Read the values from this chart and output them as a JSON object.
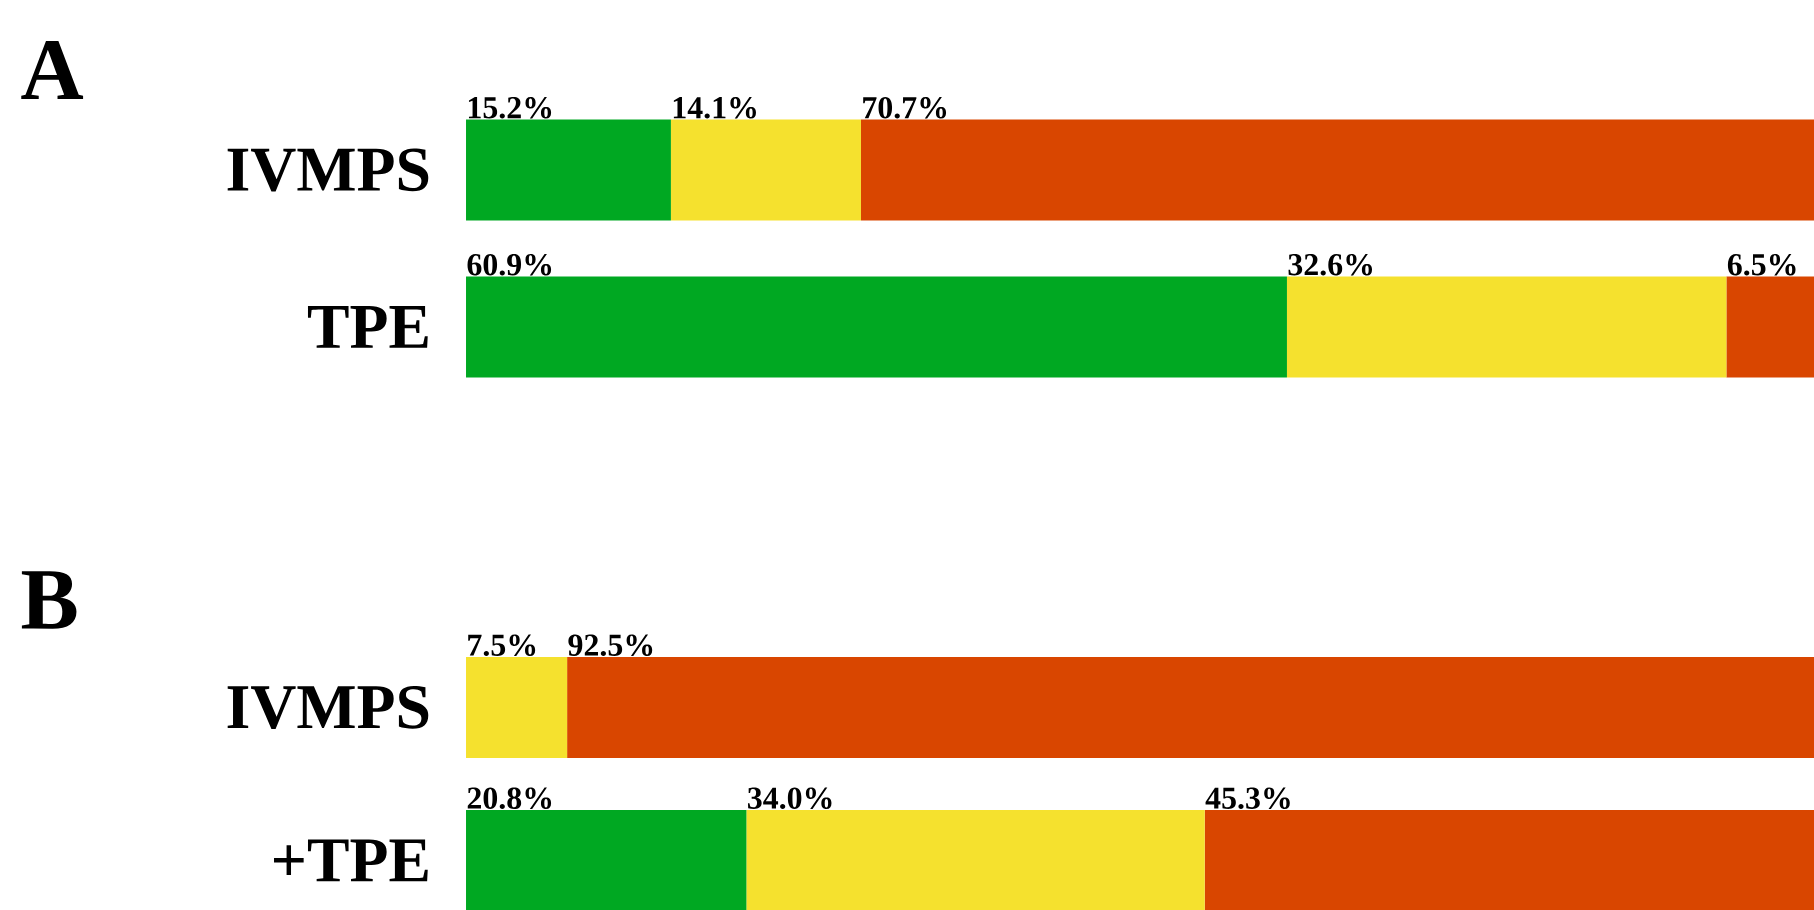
{
  "chart_data": [
    {
      "type": "bar",
      "orientation": "horizontal",
      "stacked": true,
      "title": "A",
      "categories": [
        "IVMPS",
        "TPE"
      ],
      "xlim": [
        0,
        100
      ],
      "tick_labels": "y",
      "series": [
        {
          "color": "#00a822",
          "values": [
            15.2,
            60.9
          ],
          "value_labels": [
            "15.2%",
            "60.9%"
          ]
        },
        {
          "color": "#f5e12e",
          "values": [
            14.1,
            32.6
          ],
          "value_labels": [
            "14.1%",
            "32.6%"
          ]
        },
        {
          "color": "#d94600",
          "values": [
            70.7,
            6.5
          ],
          "value_labels": [
            "70.7%",
            "6.5%"
          ]
        }
      ]
    },
    {
      "type": "bar",
      "orientation": "horizontal",
      "stacked": true,
      "title": "B",
      "categories": [
        "IVMPS",
        "+TPE"
      ],
      "xlim": [
        0,
        100
      ],
      "tick_labels": "y",
      "series": [
        {
          "color": "#00a822",
          "values": [
            0,
            20.8
          ],
          "value_labels": [
            null,
            "20.8%"
          ]
        },
        {
          "color": "#f5e12e",
          "values": [
            7.5,
            34.0
          ],
          "value_labels": [
            "7.5%",
            "34.0%"
          ]
        },
        {
          "color": "#d94600",
          "values": [
            92.5,
            45.3
          ],
          "value_labels": [
            "92.5%",
            "45.3%"
          ]
        }
      ]
    }
  ]
}
